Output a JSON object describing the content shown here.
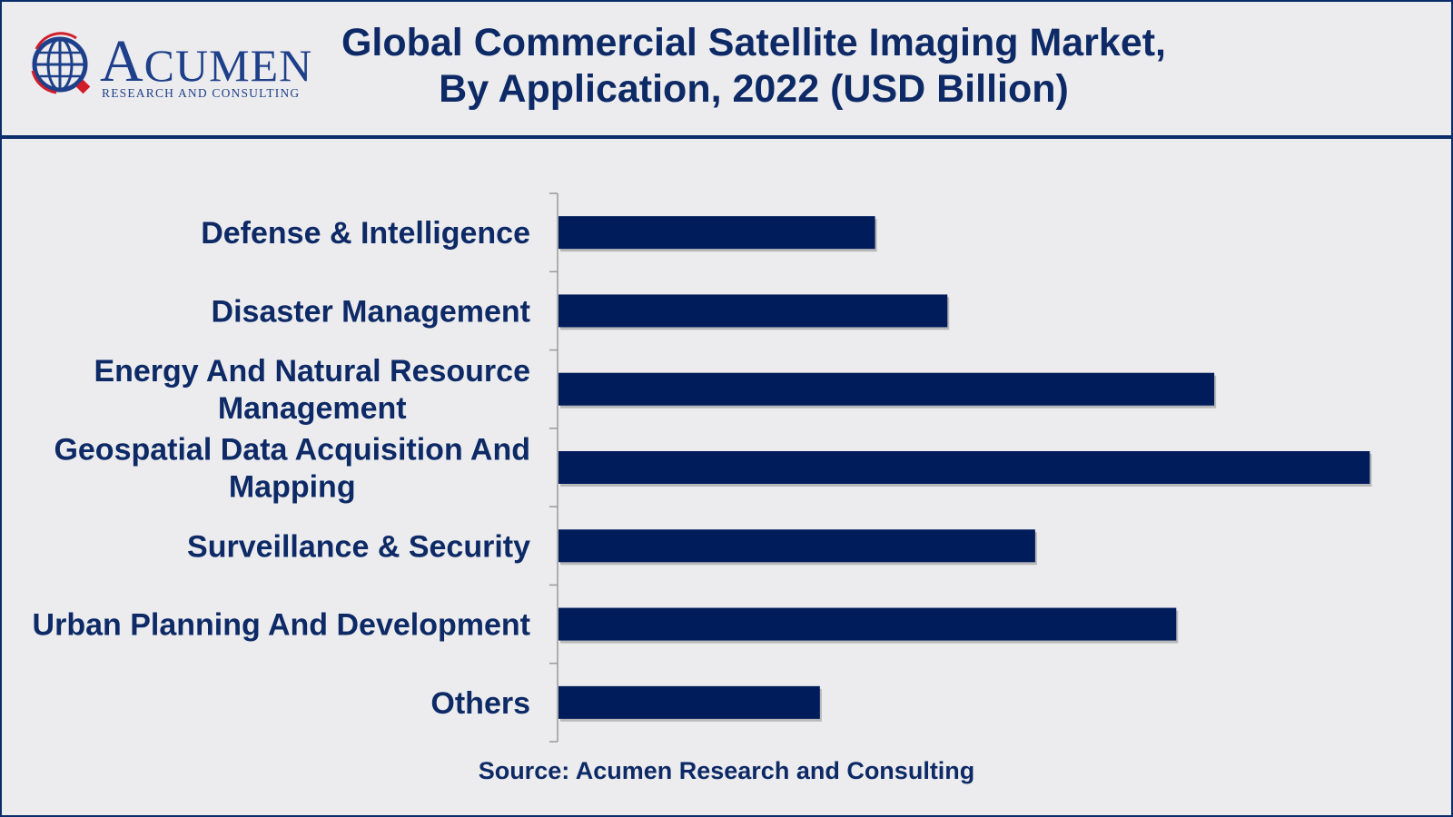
{
  "logo": {
    "brand": "ACUMEN",
    "brand_initial": "A",
    "brand_rest": "CUMEN",
    "tagline": "RESEARCH AND CONSULTING"
  },
  "header": {
    "title_line1": "Global Commercial Satellite Imaging Market,",
    "title_line2": "By Application, 2022 (USD Billion)"
  },
  "footer": {
    "source": "Source: Acumen Research and Consulting"
  },
  "colors": {
    "bar": "#001c5b",
    "text": "#0d2a66",
    "background": "#ececee",
    "logo_red": "#d01e2a"
  },
  "chart_data": {
    "type": "bar",
    "orientation": "horizontal",
    "title": "Global Commercial Satellite Imaging Market, By Application, 2022 (USD Billion)",
    "xlabel": "",
    "ylabel": "",
    "categories": [
      "Defense & Intelligence",
      "Disaster Management",
      "Energy And Natural Resource Management",
      "Geospatial Data Acquisition And Mapping",
      "Surveillance & Security",
      "Urban Planning And Development",
      "Others"
    ],
    "category_lines": [
      [
        "Defense & Intelligence"
      ],
      [
        "Disaster Management"
      ],
      [
        "Energy And Natural Resource",
        "Management"
      ],
      [
        "Geospatial Data Acquisition And",
        "Mapping"
      ],
      [
        "Surveillance & Security"
      ],
      [
        "Urban Planning And Development"
      ],
      [
        "Others"
      ]
    ],
    "values": [
      0.35,
      0.43,
      0.725,
      0.897,
      0.527,
      0.683,
      0.289
    ],
    "xlim": [
      0,
      1
    ],
    "grid": false,
    "legend": "none"
  }
}
